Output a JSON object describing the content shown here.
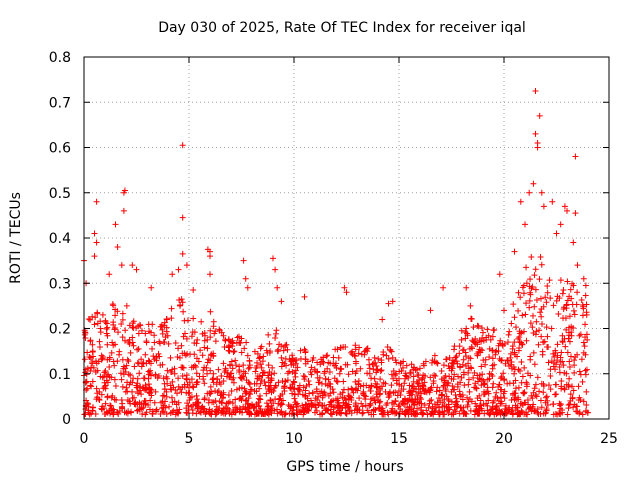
{
  "chart_data": {
    "type": "scatter",
    "title": "Day 030 of 2025, Rate Of TEC Index for receiver iqal",
    "xlabel": "GPS time / hours",
    "ylabel": "ROTI / TECUs",
    "xlim": [
      0,
      25
    ],
    "ylim": [
      0,
      0.8
    ],
    "x_ticks": [
      "0",
      "5",
      "10",
      "15",
      "20",
      "25"
    ],
    "y_ticks": [
      "0",
      "0.1",
      "0.2",
      "0.3",
      "0.4",
      "0.5",
      "0.6",
      "0.7",
      "0.8"
    ],
    "grid": true,
    "marker": "+",
    "color": "#ff0000",
    "series": [
      {
        "points": [
          [
            0.0,
            0.35
          ],
          [
            0.1,
            0.3
          ],
          [
            0.6,
            0.48
          ],
          [
            0.5,
            0.41
          ],
          [
            0.6,
            0.39
          ],
          [
            0.5,
            0.36
          ],
          [
            1.2,
            0.32
          ],
          [
            1.5,
            0.43
          ],
          [
            1.6,
            0.38
          ],
          [
            1.8,
            0.34
          ],
          [
            1.9,
            0.5
          ],
          [
            1.95,
            0.505
          ],
          [
            1.9,
            0.46
          ],
          [
            2.3,
            0.34
          ],
          [
            2.5,
            0.33
          ],
          [
            3.2,
            0.29
          ],
          [
            4.2,
            0.32
          ],
          [
            4.5,
            0.33
          ],
          [
            4.7,
            0.605
          ],
          [
            4.7,
            0.445
          ],
          [
            4.7,
            0.365
          ],
          [
            4.9,
            0.34
          ],
          [
            5.2,
            0.285
          ],
          [
            5.9,
            0.375
          ],
          [
            6.0,
            0.37
          ],
          [
            6.0,
            0.36
          ],
          [
            6.0,
            0.32
          ],
          [
            7.6,
            0.35
          ],
          [
            7.7,
            0.31
          ],
          [
            7.8,
            0.29
          ],
          [
            9.0,
            0.355
          ],
          [
            9.1,
            0.33
          ],
          [
            9.2,
            0.29
          ],
          [
            9.4,
            0.26
          ],
          [
            10.5,
            0.27
          ],
          [
            12.4,
            0.29
          ],
          [
            12.5,
            0.28
          ],
          [
            14.2,
            0.22
          ],
          [
            14.5,
            0.255
          ],
          [
            14.7,
            0.26
          ],
          [
            16.5,
            0.24
          ],
          [
            17.1,
            0.29
          ],
          [
            18.2,
            0.29
          ],
          [
            18.4,
            0.25
          ],
          [
            19.8,
            0.32
          ],
          [
            20.0,
            0.24
          ],
          [
            20.5,
            0.37
          ],
          [
            20.8,
            0.48
          ],
          [
            21.0,
            0.43
          ],
          [
            21.2,
            0.5
          ],
          [
            21.4,
            0.52
          ],
          [
            21.5,
            0.725
          ],
          [
            21.5,
            0.63
          ],
          [
            21.6,
            0.61
          ],
          [
            21.6,
            0.6
          ],
          [
            21.7,
            0.67
          ],
          [
            21.8,
            0.5
          ],
          [
            21.9,
            0.47
          ],
          [
            22.3,
            0.48
          ],
          [
            22.5,
            0.41
          ],
          [
            22.7,
            0.43
          ],
          [
            22.9,
            0.47
          ],
          [
            23.0,
            0.46
          ],
          [
            23.3,
            0.39
          ],
          [
            23.4,
            0.58
          ],
          [
            23.4,
            0.455
          ],
          [
            23.5,
            0.34
          ],
          [
            23.8,
            0.31
          ],
          [
            23.9,
            0.295
          ]
        ]
      }
    ],
    "dense_band": [
      [
        0,
        0.2
      ],
      [
        0.5,
        0.24
      ],
      [
        1.0,
        0.22
      ],
      [
        1.5,
        0.26
      ],
      [
        2.0,
        0.25
      ],
      [
        2.5,
        0.2
      ],
      [
        3.0,
        0.22
      ],
      [
        3.5,
        0.2
      ],
      [
        4.0,
        0.22
      ],
      [
        4.5,
        0.27
      ],
      [
        5.0,
        0.22
      ],
      [
        5.5,
        0.21
      ],
      [
        6.0,
        0.23
      ],
      [
        6.5,
        0.19
      ],
      [
        7.0,
        0.17
      ],
      [
        7.5,
        0.18
      ],
      [
        8.0,
        0.15
      ],
      [
        8.5,
        0.15
      ],
      [
        9.0,
        0.2
      ],
      [
        9.5,
        0.17
      ],
      [
        10.0,
        0.13
      ],
      [
        10.5,
        0.15
      ],
      [
        11.0,
        0.13
      ],
      [
        11.5,
        0.13
      ],
      [
        12.0,
        0.15
      ],
      [
        12.5,
        0.15
      ],
      [
        13.0,
        0.16
      ],
      [
        13.5,
        0.15
      ],
      [
        14.0,
        0.13
      ],
      [
        14.5,
        0.16
      ],
      [
        15.0,
        0.12
      ],
      [
        15.5,
        0.12
      ],
      [
        16.0,
        0.11
      ],
      [
        16.5,
        0.15
      ],
      [
        17.0,
        0.11
      ],
      [
        17.5,
        0.14
      ],
      [
        18.0,
        0.2
      ],
      [
        18.5,
        0.22
      ],
      [
        19.0,
        0.19
      ],
      [
        19.5,
        0.19
      ],
      [
        20.0,
        0.16
      ],
      [
        20.5,
        0.26
      ],
      [
        21.0,
        0.32
      ],
      [
        21.5,
        0.37
      ],
      [
        22.0,
        0.33
      ],
      [
        22.5,
        0.3
      ],
      [
        23.0,
        0.32
      ],
      [
        23.5,
        0.3
      ],
      [
        24.0,
        0.27
      ]
    ]
  }
}
